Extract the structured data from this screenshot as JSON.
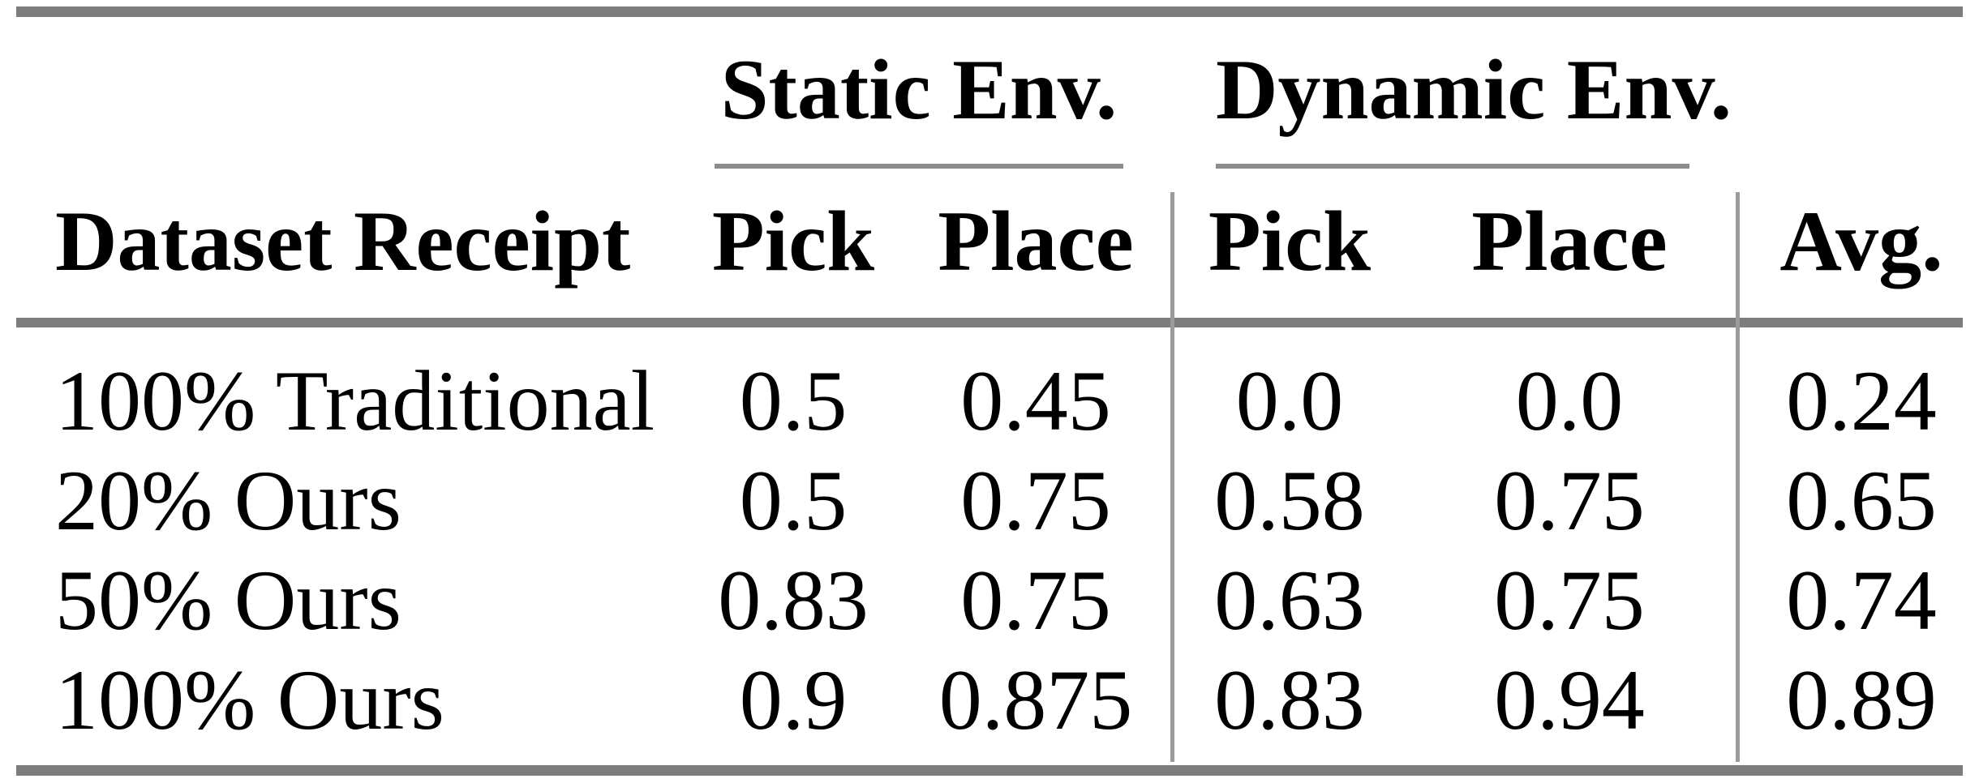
{
  "table": {
    "title_hint": "results-table",
    "column_groups": {
      "static": "Static Env.",
      "dynamic": "Dynamic Env."
    },
    "headers": {
      "row_label": "Dataset Receipt",
      "static_pick": "Pick",
      "static_place": "Place",
      "dynamic_pick": "Pick",
      "dynamic_place": "Place",
      "avg": "Avg."
    },
    "rows": [
      {
        "label": "100% Traditional",
        "values": [
          "0.5",
          "0.45",
          "0.0",
          "0.0",
          "0.24"
        ]
      },
      {
        "label": "20% Ours",
        "values": [
          "0.5",
          "0.75",
          "0.58",
          "0.75",
          "0.65"
        ]
      },
      {
        "label": "50% Ours",
        "values": [
          "0.83",
          "0.75",
          "0.63",
          "0.75",
          "0.74"
        ]
      },
      {
        "label": "100% Ours",
        "values": [
          "0.9",
          "0.875",
          "0.83",
          "0.94",
          "0.89"
        ]
      }
    ],
    "colors": {
      "text": "#000000",
      "thick_rule": "#7d7d7d",
      "cmidrule": "#8c8c8c",
      "vertical_rule": "#9b9b9b",
      "background": "#ffffff"
    }
  },
  "chart_data": {
    "type": "table",
    "title": "",
    "columns": [
      "Dataset Receipt",
      "Static Env. Pick",
      "Static Env. Place",
      "Dynamic Env. Pick",
      "Dynamic Env. Place",
      "Avg."
    ],
    "rows": [
      [
        "100% Traditional",
        0.5,
        0.45,
        0.0,
        0.0,
        0.24
      ],
      [
        "20% Ours",
        0.5,
        0.75,
        0.58,
        0.75,
        0.65
      ],
      [
        "50% Ours",
        0.83,
        0.75,
        0.63,
        0.75,
        0.74
      ],
      [
        "100% Ours",
        0.9,
        0.875,
        0.83,
        0.94,
        0.89
      ]
    ]
  }
}
